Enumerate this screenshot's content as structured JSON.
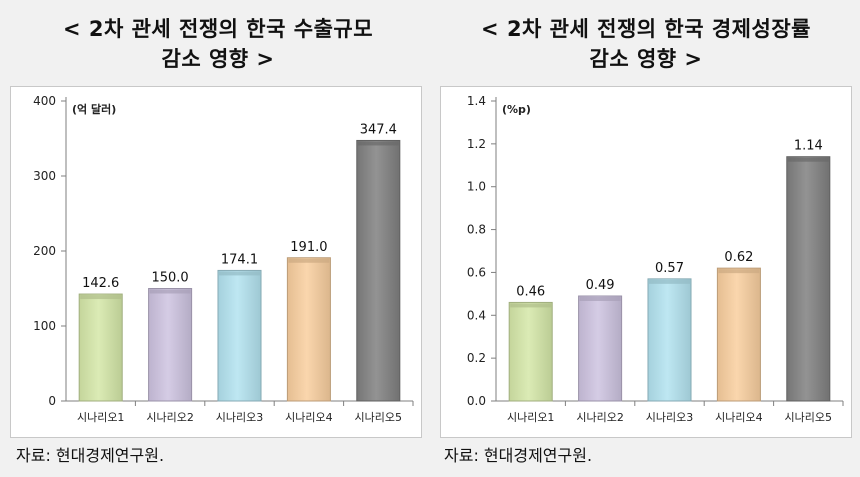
{
  "chart_data": [
    {
      "type": "bar",
      "title_line1": "< 2차 관세 전쟁의 한국 수출규모",
      "title_line2": "감소 영향 >",
      "unit_label": "(억 달러)",
      "categories": [
        "시나리오1",
        "시나리오2",
        "시나리오3",
        "시나리오4",
        "시나리오5"
      ],
      "values": [
        142.6,
        150.0,
        174.1,
        191.0,
        347.4
      ],
      "value_labels": [
        "142.6",
        "150.0",
        "174.1",
        "191.0",
        "347.4"
      ],
      "ylim": [
        0,
        400
      ],
      "yticks": [
        0,
        100,
        200,
        300,
        400
      ],
      "ytick_labels": [
        "0",
        "100",
        "200",
        "300",
        "400"
      ],
      "bar_colors": [
        "#d5e8a8",
        "#cdc3e0",
        "#b3e3f0",
        "#f9cf9f",
        "#808080"
      ],
      "source": "자료: 현대경제연구원."
    },
    {
      "type": "bar",
      "title_line1": "< 2차 관세 전쟁의 한국 경제성장률",
      "title_line2": "감소 영향 >",
      "unit_label": "(%p)",
      "categories": [
        "시나리오1",
        "시나리오2",
        "시나리오3",
        "시나리오4",
        "시나리오5"
      ],
      "values": [
        0.46,
        0.49,
        0.57,
        0.62,
        1.14
      ],
      "value_labels": [
        "0.46",
        "0.49",
        "0.57",
        "0.62",
        "1.14"
      ],
      "ylim": [
        0,
        1.4
      ],
      "yticks": [
        0,
        0.2,
        0.4,
        0.6,
        0.8,
        1.0,
        1.2,
        1.4
      ],
      "ytick_labels": [
        "0.0",
        "0.2",
        "0.4",
        "0.6",
        "0.8",
        "1.0",
        "1.2",
        "1.4"
      ],
      "bar_colors": [
        "#d5e8a8",
        "#cdc3e0",
        "#b3e3f0",
        "#f9cf9f",
        "#808080"
      ],
      "source": "자료: 현대경제연구원."
    }
  ]
}
